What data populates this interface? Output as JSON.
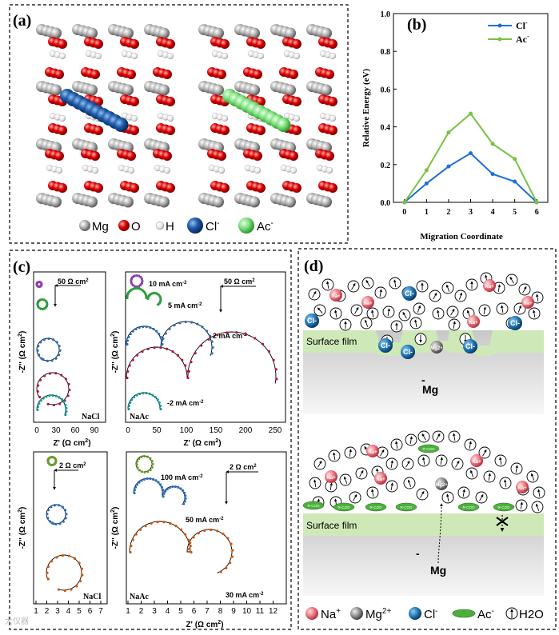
{
  "panel_a": {
    "label": "(a)",
    "legend": [
      "Mg",
      "O",
      "H",
      "Cl",
      "Ac"
    ],
    "legend_sup": "-"
  },
  "panel_b": {
    "label": "(b)",
    "chart_data": {
      "type": "line",
      "x": [
        0,
        1,
        2,
        3,
        4,
        5,
        6
      ],
      "series": [
        {
          "name": "Cl",
          "sup": "-",
          "color": "#1f6fd6",
          "values": [
            0.0,
            0.1,
            0.19,
            0.26,
            0.15,
            0.11,
            0.0
          ]
        },
        {
          "name": "Ac",
          "sup": "-",
          "color": "#7ac143",
          "values": [
            0.0,
            0.17,
            0.37,
            0.47,
            0.31,
            0.23,
            0.0
          ]
        }
      ],
      "xlabel": "Migration Coordinate",
      "ylabel": "Relative Energy (eV)",
      "xlim": [
        -0.5,
        6.5
      ],
      "ylim": [
        0,
        1.0
      ],
      "yticks": [
        "0.0",
        "0.2",
        "0.4",
        "0.6",
        "0.8",
        "1.0"
      ],
      "xticks": [
        "0",
        "1",
        "2",
        "3",
        "4",
        "5",
        "6"
      ]
    }
  },
  "panel_c": {
    "label": "(c)",
    "nacl_top": {
      "tag": "NaCl",
      "scale": "50 Ω cm",
      "xlabel": "Z' (Ω cm",
      "ylabel": "-Z'' (Ω cm",
      "xticks": [
        "0",
        "30",
        "60",
        "90"
      ]
    },
    "naac_top": {
      "tag": "NaAc",
      "scale": "50 Ω cm",
      "xlabel": "Z' (Ω cm",
      "ylabel": "-Z'' (Ω cm",
      "xticks": [
        "0",
        "50",
        "100",
        "150",
        "200",
        "250"
      ],
      "labels": [
        "10 mA cm",
        "5 mA cm",
        "2 mA cm",
        "-2 mA cm"
      ]
    },
    "nacl_bot": {
      "tag": "NaCl",
      "scale": "2 Ω cm",
      "ylabel": "-Z'' (Ω cm",
      "xticks": [
        "1",
        "2",
        "3",
        "4",
        "5",
        "6",
        "7"
      ]
    },
    "naac_bot": {
      "tag": "NaAc",
      "scale": "2 Ω cm",
      "xlabel": "Z' (Ω cm",
      "ylabel": "-Z'' (Ω cm",
      "xticks": [
        "1",
        "2",
        "3",
        "4",
        "5",
        "6",
        "7",
        "8",
        "9",
        "10",
        "11",
        "12"
      ],
      "labels": [
        "100 mA cm",
        "50 mA cm",
        "30 mA cm"
      ]
    },
    "unit_sup": "2",
    "unit_close": ")",
    "label_sup": "-2"
  },
  "panel_d": {
    "label": "(d)",
    "surface_film": "Surface film",
    "mg": "Mg",
    "minus": "-",
    "ion_na": "Na",
    "ion_na_sup": "+",
    "ion_mg": "Mg",
    "ion_mg_sup": "2+",
    "ion_cl": "Cl",
    "ion_cl_sup": "-",
    "rcoo": "R-COO",
    "legend": [
      "Na",
      "Mg",
      "Cl",
      "Ac",
      "H2O"
    ],
    "legend_sup": [
      "+",
      "2+",
      "-",
      "-",
      ""
    ]
  },
  "watermark": "大仪器"
}
